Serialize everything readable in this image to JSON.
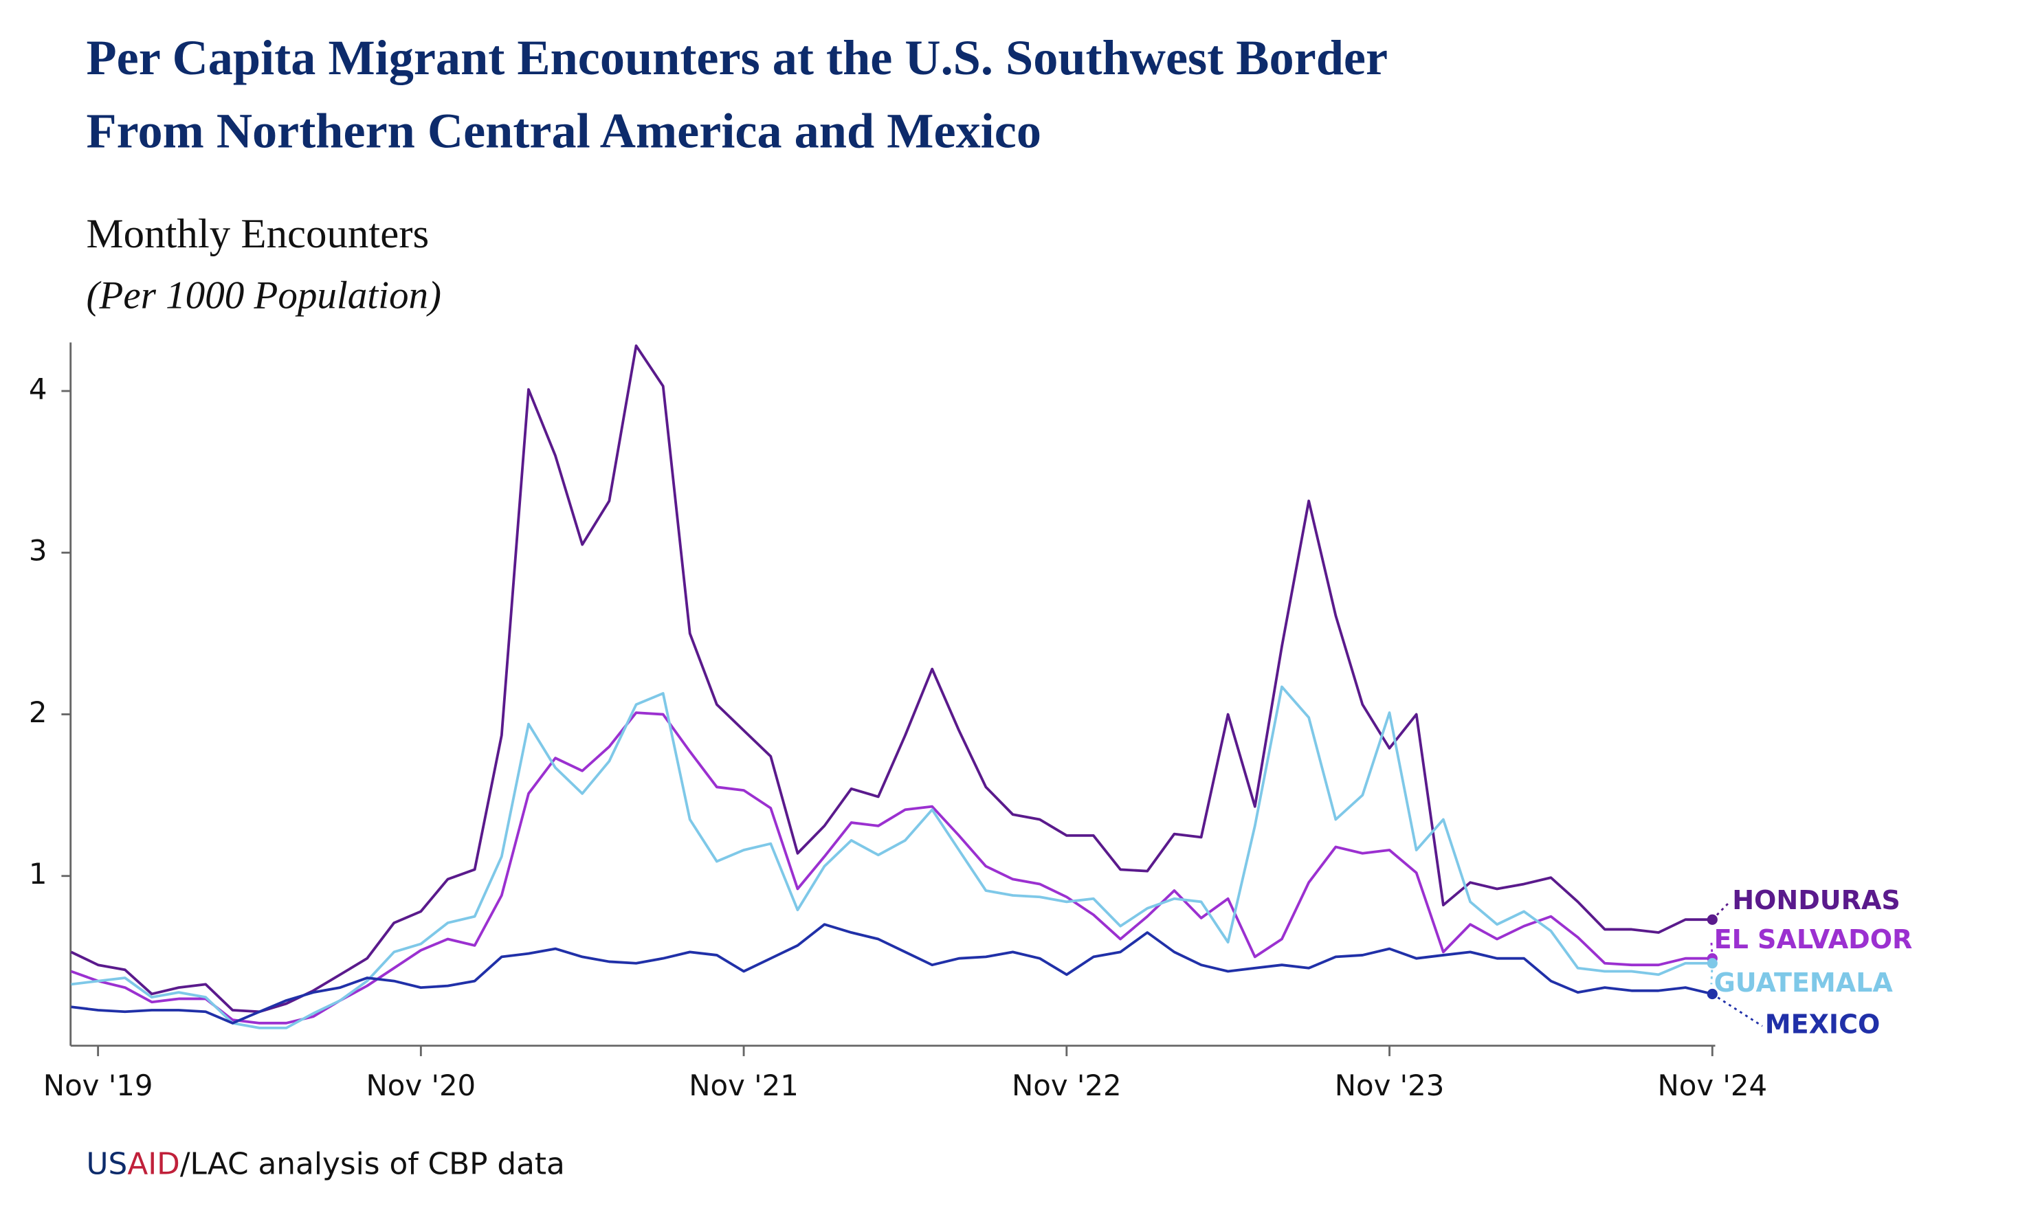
{
  "chart_data": {
    "type": "line",
    "title": [
      "Per Capita Migrant Encounters at the U.S. Southwest Border",
      "From Northern Central America and Mexico"
    ],
    "subtitle": "Monthly Encounters",
    "y_axis_label": "(Per 1000 Population)",
    "source": [
      "US",
      "AID",
      "/LAC analysis of CBP data"
    ],
    "x": [
      "2019-10",
      "2019-11",
      "2019-12",
      "2020-01",
      "2020-02",
      "2020-03",
      "2020-04",
      "2020-05",
      "2020-06",
      "2020-07",
      "2020-08",
      "2020-09",
      "2020-10",
      "2020-11",
      "2020-12",
      "2021-01",
      "2021-02",
      "2021-03",
      "2021-04",
      "2021-05",
      "2021-06",
      "2021-07",
      "2021-08",
      "2021-09",
      "2021-10",
      "2021-11",
      "2021-12",
      "2022-01",
      "2022-02",
      "2022-03",
      "2022-04",
      "2022-05",
      "2022-06",
      "2022-07",
      "2022-08",
      "2022-09",
      "2022-10",
      "2022-11",
      "2022-12",
      "2023-01",
      "2023-02",
      "2023-03",
      "2023-04",
      "2023-05",
      "2023-06",
      "2023-07",
      "2023-08",
      "2023-09",
      "2023-10",
      "2023-11",
      "2023-12",
      "2024-01",
      "2024-02",
      "2024-03",
      "2024-04",
      "2024-05",
      "2024-06",
      "2024-07",
      "2024-08",
      "2024-09",
      "2024-10",
      "2024-11"
    ],
    "xticks": [
      {
        "value": "2019-11",
        "label": "Nov '19"
      },
      {
        "value": "2020-11",
        "label": "Nov '20"
      },
      {
        "value": "2021-11",
        "label": "Nov '21"
      },
      {
        "value": "2022-11",
        "label": "Nov '22"
      },
      {
        "value": "2023-11",
        "label": "Nov '23"
      },
      {
        "value": "2024-11",
        "label": "Nov '24"
      }
    ],
    "ylim": [
      -0.05,
      4.3
    ],
    "yticks": [
      1,
      2,
      3,
      4
    ],
    "series": [
      {
        "name": "HONDURAS",
        "color": "#5a1a8c",
        "values": [
          0.53,
          0.45,
          0.42,
          0.27,
          0.31,
          0.33,
          0.17,
          0.16,
          0.21,
          0.29,
          0.39,
          0.49,
          0.71,
          0.78,
          0.98,
          1.04,
          1.87,
          4.01,
          3.6,
          3.05,
          3.32,
          4.28,
          4.03,
          2.5,
          2.06,
          1.9,
          1.74,
          1.14,
          1.31,
          1.54,
          1.49,
          1.87,
          2.28,
          1.9,
          1.55,
          1.38,
          1.35,
          1.25,
          1.25,
          1.04,
          1.03,
          1.26,
          1.24,
          2.0,
          1.43,
          2.42,
          3.32,
          2.61,
          2.06,
          1.79,
          2.0,
          0.82,
          0.96,
          0.92,
          0.95,
          0.99,
          0.84,
          0.67,
          0.67,
          0.65,
          0.73,
          0.73
        ]
      },
      {
        "name": "EL SALVADOR",
        "color": "#9b30d0",
        "values": [
          0.41,
          0.35,
          0.31,
          0.22,
          0.24,
          0.24,
          0.11,
          0.09,
          0.09,
          0.13,
          0.23,
          0.32,
          0.43,
          0.54,
          0.61,
          0.57,
          0.88,
          1.51,
          1.73,
          1.65,
          1.8,
          2.01,
          2.0,
          1.77,
          1.55,
          1.53,
          1.42,
          0.92,
          1.12,
          1.33,
          1.31,
          1.41,
          1.43,
          1.25,
          1.06,
          0.98,
          0.95,
          0.87,
          0.76,
          0.61,
          0.75,
          0.91,
          0.74,
          0.86,
          0.5,
          0.61,
          0.96,
          1.18,
          1.14,
          1.16,
          1.02,
          0.53,
          0.7,
          0.61,
          0.69,
          0.75,
          0.62,
          0.46,
          0.45,
          0.45,
          0.49,
          0.49
        ]
      },
      {
        "name": "GUATEMALA",
        "color": "#7ec8e8",
        "values": [
          0.33,
          0.35,
          0.37,
          0.25,
          0.28,
          0.25,
          0.09,
          0.06,
          0.06,
          0.15,
          0.23,
          0.35,
          0.53,
          0.58,
          0.71,
          0.75,
          1.12,
          1.94,
          1.67,
          1.51,
          1.71,
          2.06,
          2.13,
          1.35,
          1.09,
          1.16,
          1.2,
          0.79,
          1.06,
          1.22,
          1.13,
          1.22,
          1.41,
          1.16,
          0.91,
          0.88,
          0.87,
          0.84,
          0.86,
          0.69,
          0.8,
          0.86,
          0.84,
          0.59,
          1.31,
          2.17,
          1.98,
          1.35,
          1.5,
          2.01,
          1.16,
          1.35,
          0.84,
          0.7,
          0.78,
          0.66,
          0.43,
          0.41,
          0.41,
          0.39,
          0.46,
          0.46
        ]
      },
      {
        "name": "MEXICO",
        "color": "#2030a8",
        "values": [
          0.19,
          0.17,
          0.16,
          0.17,
          0.17,
          0.16,
          0.09,
          0.16,
          0.23,
          0.28,
          0.31,
          0.37,
          0.35,
          0.31,
          0.32,
          0.35,
          0.5,
          0.52,
          0.55,
          0.5,
          0.47,
          0.46,
          0.49,
          0.53,
          0.51,
          0.41,
          0.49,
          0.57,
          0.7,
          0.65,
          0.61,
          0.53,
          0.45,
          0.49,
          0.5,
          0.53,
          0.49,
          0.39,
          0.5,
          0.53,
          0.65,
          0.53,
          0.45,
          0.41,
          0.43,
          0.45,
          0.43,
          0.5,
          0.51,
          0.55,
          0.49,
          0.51,
          0.53,
          0.49,
          0.49,
          0.35,
          0.28,
          0.31,
          0.29,
          0.29,
          0.31,
          0.27
        ]
      }
    ]
  }
}
